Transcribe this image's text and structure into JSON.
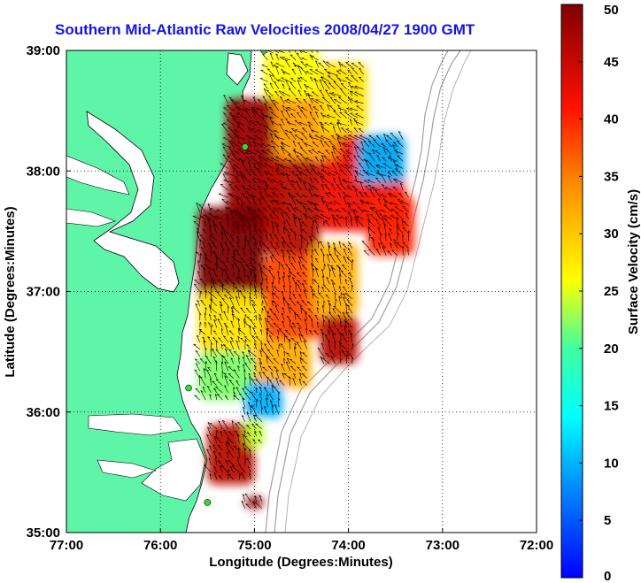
{
  "title": "Southern Mid-Atlantic Raw Velocities 2008/04/27 1900 GMT",
  "colors": {
    "land": "#5ff5a8",
    "water": "#ffffff",
    "coast": "#000000",
    "bathymetry": "#a0a0a0",
    "title": "#1414e6",
    "station": "#33dd33"
  },
  "chart_data": {
    "type": "heatmap",
    "title": "Southern Mid-Atlantic Raw Velocities 2008/04/27 1900 GMT",
    "xlabel": "Longitude (Degrees:Minutes)",
    "ylabel": "Latitude (Degrees:Minutes)",
    "xlim": [
      -77,
      -72
    ],
    "ylim": [
      35,
      39
    ],
    "xticks": [
      -77,
      -76,
      -75,
      -74,
      -73,
      -72
    ],
    "xtick_labels": [
      "77:00",
      "76:00",
      "75:00",
      "74:00",
      "73:00",
      "72:00"
    ],
    "yticks": [
      35,
      36,
      37,
      38,
      39
    ],
    "ytick_labels": [
      "35:00",
      "36:00",
      "37:00",
      "38:00",
      "39:00"
    ],
    "grid": true,
    "colorbar": {
      "label": "Surface Velocity (cm/s)",
      "min": 0,
      "max": 50,
      "ticks": [
        0,
        5,
        10,
        15,
        20,
        25,
        30,
        35,
        40,
        45,
        50
      ],
      "tick_labels": [
        "0",
        "5",
        "10",
        "15",
        "20",
        "25",
        "30",
        "35",
        "40",
        "45",
        "50"
      ],
      "colormap": "jet"
    },
    "stations": [
      {
        "lon": -74.9,
        "lat": 39.0
      },
      {
        "lon": -75.1,
        "lat": 38.2
      },
      {
        "lon": -75.7,
        "lat": 36.2
      },
      {
        "lon": -75.5,
        "lat": 35.25
      }
    ],
    "current_regions": [
      {
        "lon_min": -75.3,
        "lon_max": -74.7,
        "lat_min": 37.5,
        "lat_max": 38.6,
        "speed": 48
      },
      {
        "lon_min": -75.6,
        "lon_max": -74.9,
        "lat_min": 36.9,
        "lat_max": 37.7,
        "speed": 50
      },
      {
        "lon_min": -74.9,
        "lon_max": -74.3,
        "lat_min": 37.3,
        "lat_max": 38.1,
        "speed": 46
      },
      {
        "lon_min": -74.3,
        "lon_max": -73.4,
        "lat_min": 37.5,
        "lat_max": 38.3,
        "speed": 42
      },
      {
        "lon_min": -74.8,
        "lon_max": -74.1,
        "lat_min": 38.1,
        "lat_max": 38.8,
        "speed": 33
      },
      {
        "lon_min": -74.9,
        "lon_max": -74.3,
        "lat_min": 38.6,
        "lat_max": 39.0,
        "speed": 26
      },
      {
        "lon_min": -74.3,
        "lon_max": -73.8,
        "lat_min": 38.3,
        "lat_max": 38.9,
        "speed": 28
      },
      {
        "lon_min": -73.9,
        "lon_max": -73.4,
        "lat_min": 37.9,
        "lat_max": 38.3,
        "speed": 10
      },
      {
        "lon_min": -73.8,
        "lon_max": -73.3,
        "lat_min": 37.3,
        "lat_max": 37.8,
        "speed": 40
      },
      {
        "lon_min": -75.6,
        "lon_max": -74.9,
        "lat_min": 36.5,
        "lat_max": 37.0,
        "speed": 28
      },
      {
        "lon_min": -74.9,
        "lon_max": -74.3,
        "lat_min": 36.6,
        "lat_max": 37.3,
        "speed": 38
      },
      {
        "lon_min": -74.4,
        "lon_max": -73.9,
        "lat_min": 36.8,
        "lat_max": 37.4,
        "speed": 32
      },
      {
        "lon_min": -74.3,
        "lon_max": -73.9,
        "lat_min": 36.4,
        "lat_max": 36.8,
        "speed": 46
      },
      {
        "lon_min": -75.6,
        "lon_max": -75.0,
        "lat_min": 36.1,
        "lat_max": 36.5,
        "speed": 22
      },
      {
        "lon_min": -75.0,
        "lon_max": -74.4,
        "lat_min": 36.2,
        "lat_max": 36.6,
        "speed": 32
      },
      {
        "lon_min": -75.1,
        "lon_max": -74.7,
        "lat_min": 35.95,
        "lat_max": 36.25,
        "speed": 10
      },
      {
        "lon_min": -75.5,
        "lon_max": -75.0,
        "lat_min": 35.4,
        "lat_max": 35.9,
        "speed": 46
      },
      {
        "lon_min": -75.1,
        "lon_max": -74.9,
        "lat_min": 35.7,
        "lat_max": 35.95,
        "speed": 24
      },
      {
        "lon_min": -75.1,
        "lon_max": -74.9,
        "lat_min": 35.2,
        "lat_max": 35.3,
        "speed": 48
      }
    ]
  }
}
